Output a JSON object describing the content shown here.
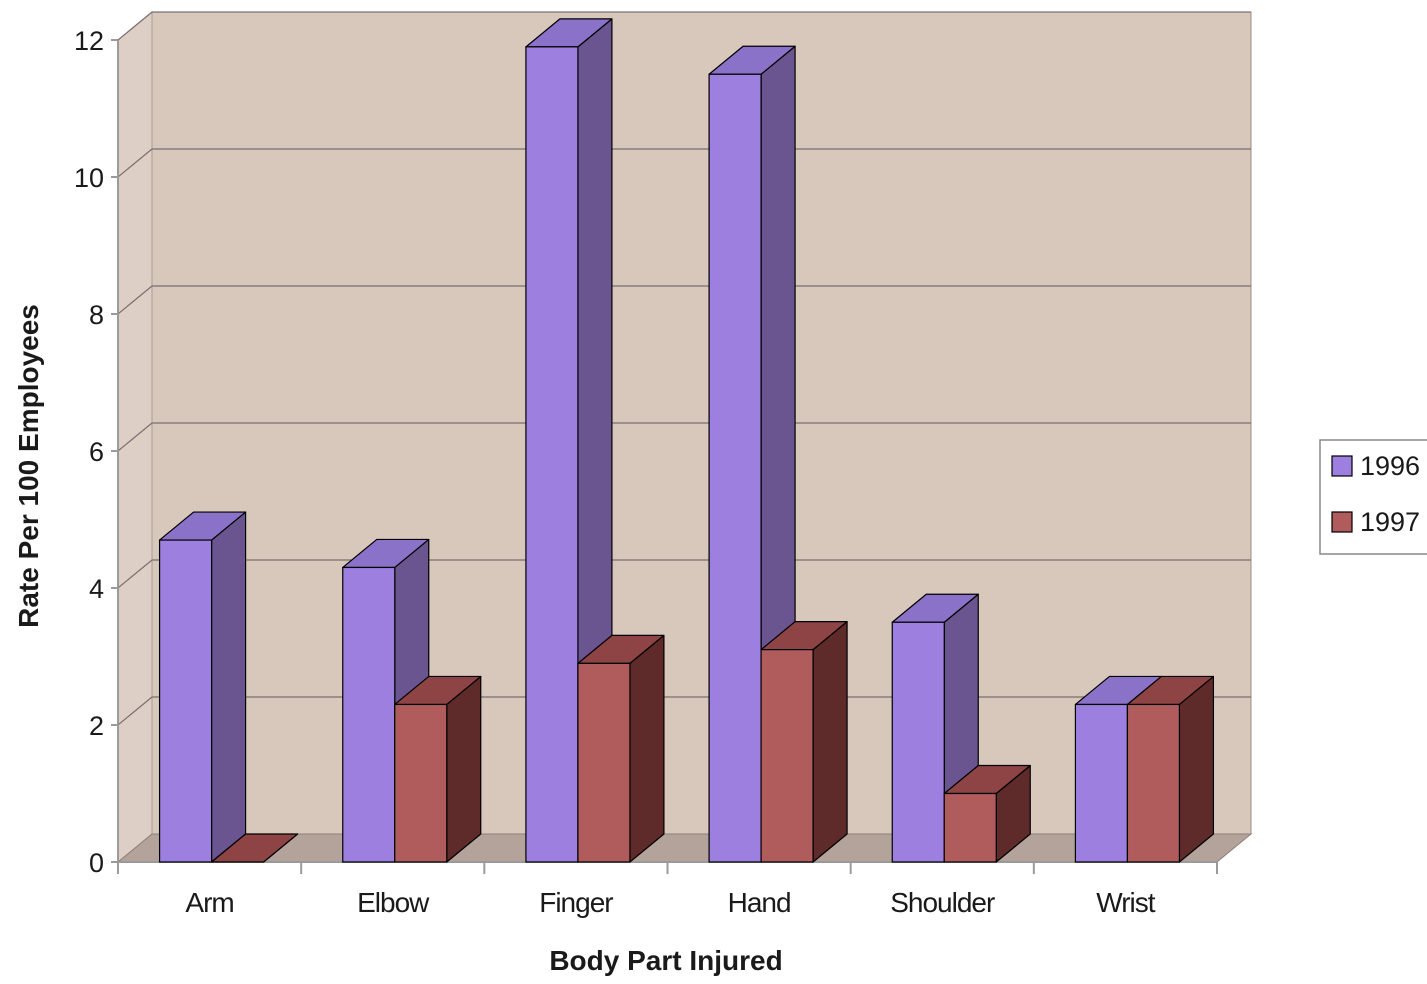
{
  "chart_data": {
    "type": "bar",
    "style": "3d-clustered-column",
    "categories": [
      "Arm",
      "Elbow",
      "Finger",
      "Hand",
      "Shoulder",
      "Wrist"
    ],
    "series": [
      {
        "name": "1996",
        "values": [
          4.7,
          4.3,
          11.9,
          11.5,
          3.5,
          2.3
        ]
      },
      {
        "name": "1997",
        "values": [
          0,
          2.3,
          2.9,
          3.1,
          1.0,
          2.3
        ]
      }
    ],
    "yticks": [
      "0",
      "2",
      "4",
      "6",
      "8",
      "10",
      "12"
    ],
    "ylim": [
      0,
      12
    ],
    "xlabel": "Body Part Injured",
    "ylabel": "Rate Per 100 Employees",
    "grid": true,
    "legend": "right",
    "colors": {
      "series_1996": {
        "front": "#9d7fdf",
        "side": "#6a5590",
        "top": "#8a72c8"
      },
      "series_1997": {
        "front": "#b05c5c",
        "side": "#5e2a2a",
        "top": "#8e4444"
      },
      "wall": "#d8c7bb",
      "side_wall": "#ddcfc5",
      "floor": "#b3a39a",
      "gridline": "#7a7070",
      "axis": "#9a9a9a"
    }
  }
}
